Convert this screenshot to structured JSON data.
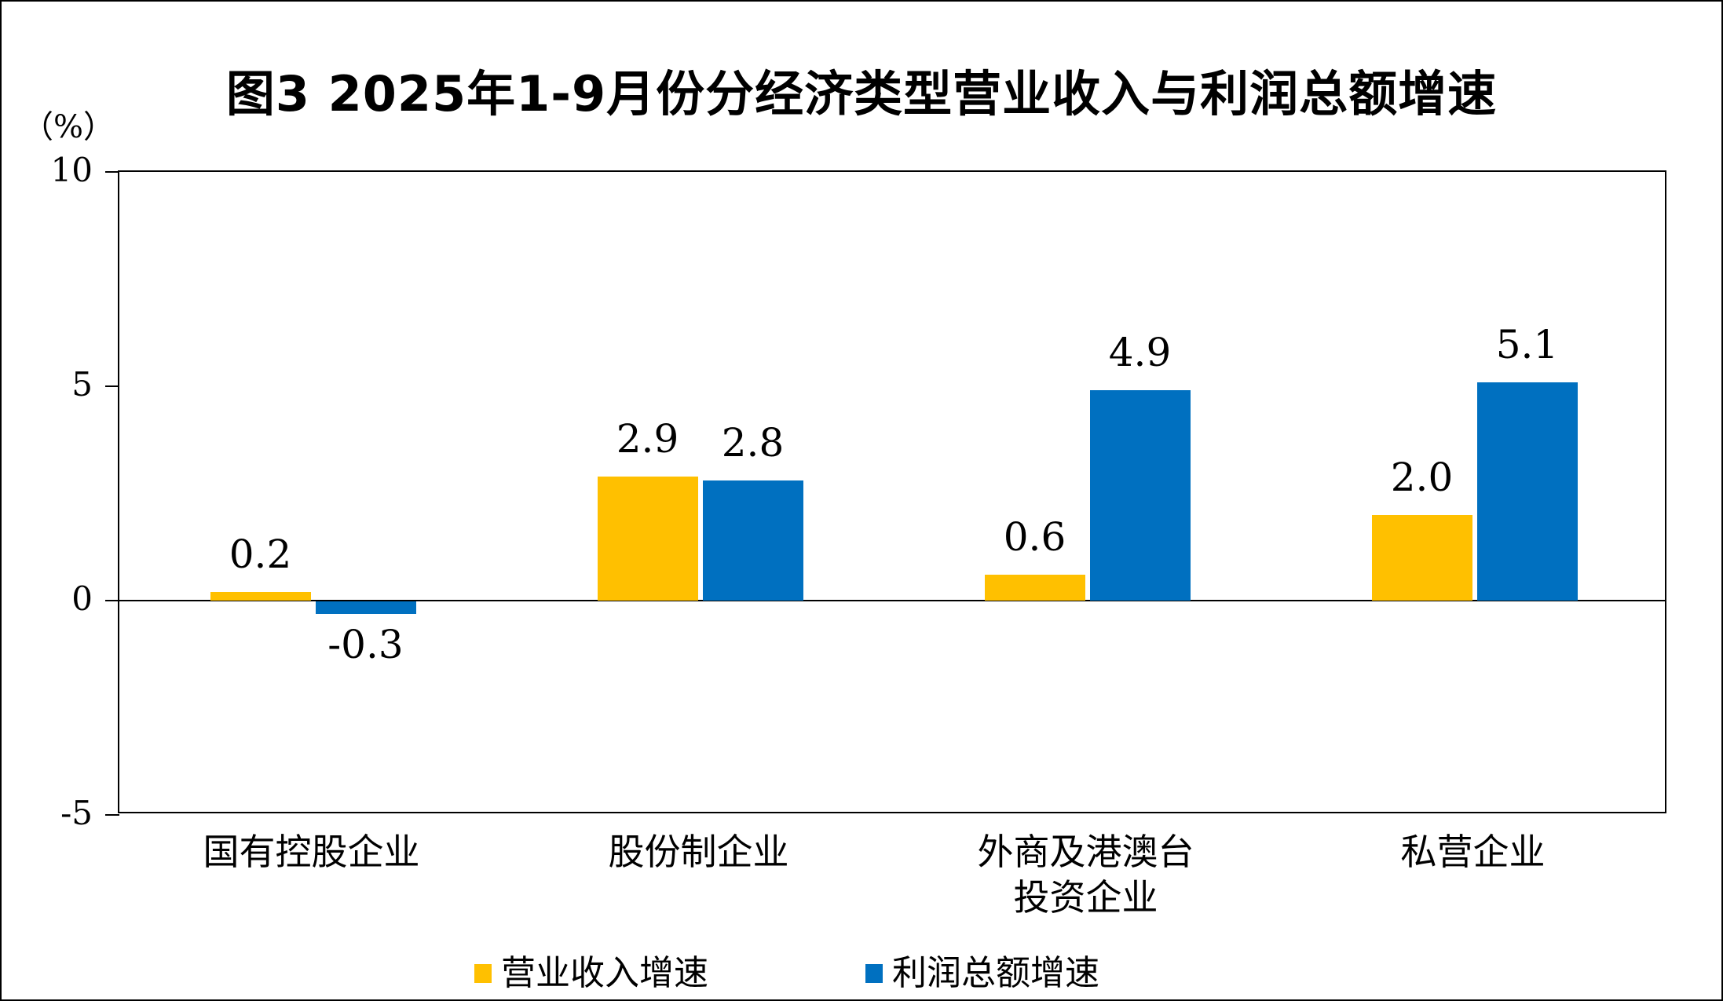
{
  "chart_data": {
    "type": "bar",
    "title": "图3  2025年1-9月份分经济类型营业收入与利润总额增速",
    "unit_label": "（%）",
    "categories": [
      "国有控股企业",
      "股份制企业",
      "外商及港澳台\n投资企业",
      "私营企业"
    ],
    "series": [
      {
        "name": "营业收入增速",
        "color": "#FFC000",
        "values": [
          0.2,
          2.9,
          0.6,
          2.0
        ]
      },
      {
        "name": "利润总额增速",
        "color": "#0070C0",
        "values": [
          -0.3,
          2.8,
          4.9,
          5.1
        ]
      }
    ],
    "ylim": [
      -5,
      10
    ],
    "yticks": [
      10,
      5,
      0,
      -5
    ],
    "grid": false,
    "legend_position": "bottom",
    "value_label_decimals": 1,
    "axis_color": "#000000"
  }
}
